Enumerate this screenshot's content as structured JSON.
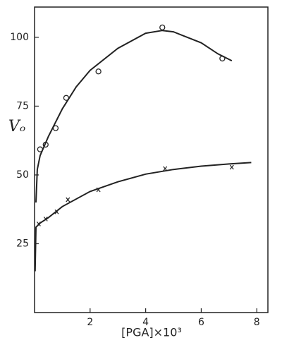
{
  "chart_data": {
    "type": "scatter",
    "xlabel": "[PGA]×10³",
    "ylabel": "Vₒ",
    "xlim": [
      0,
      8.4
    ],
    "ylim": [
      0,
      111
    ],
    "xticks": [
      2,
      4,
      6,
      8
    ],
    "yticks": [
      25,
      50,
      75,
      100
    ],
    "color": "#222222",
    "series": [
      {
        "type": "scatter",
        "marker": "o",
        "x": [
          0.2,
          0.4,
          0.76,
          1.14,
          2.3,
          4.6,
          6.76
        ],
        "values": [
          59.3,
          61,
          67,
          78,
          87.6,
          103.6,
          92.3
        ]
      },
      {
        "type": "scatter",
        "marker": "x",
        "x": [
          0.15,
          0.4,
          0.8,
          1.2,
          2.3,
          4.7,
          7.1
        ],
        "values": [
          32.2,
          34,
          36.6,
          41,
          44.6,
          52.3,
          52.8
        ]
      },
      {
        "type": "line",
        "x": [
          0.05,
          0.1,
          0.2,
          0.5,
          1,
          1.5,
          2,
          3,
          4,
          4.6,
          5,
          6,
          6.6,
          7.1
        ],
        "values": [
          40,
          52,
          57,
          64,
          74,
          82,
          88,
          96,
          101.5,
          102.5,
          102,
          98,
          94,
          91.5
        ]
      },
      {
        "type": "line",
        "x": [
          0.02,
          0.05,
          0.2,
          0.5,
          1,
          2,
          3,
          4,
          5,
          6,
          7,
          7.8
        ],
        "values": [
          15,
          31,
          32.5,
          34.5,
          38.5,
          44,
          47.5,
          50.3,
          52,
          53.2,
          54,
          54.5
        ]
      }
    ]
  }
}
